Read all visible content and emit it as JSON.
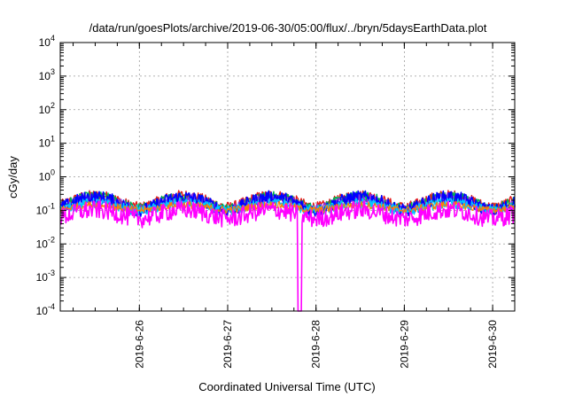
{
  "chart_data": {
    "type": "line",
    "title": "/data/run/goesPlots/archive/2019-06-30/05:00/flux/../bryn/5daysEarthData.plot",
    "xlabel": "Coordinated Universal Time (UTC)",
    "ylabel": "cGy/day",
    "yscale": "log",
    "ylim": [
      0.0001,
      10000
    ],
    "xlim": [
      "2019-06-25T02:30",
      "2019-06-30T06:00"
    ],
    "grid": true,
    "legend": "none",
    "y_ticks": [
      {
        "value": 0.0001,
        "base": "10",
        "exp": "-4"
      },
      {
        "value": 0.001,
        "base": "10",
        "exp": "-3"
      },
      {
        "value": 0.01,
        "base": "10",
        "exp": "-2"
      },
      {
        "value": 0.1,
        "base": "10",
        "exp": "-1"
      },
      {
        "value": 1,
        "base": "10",
        "exp": "0"
      },
      {
        "value": 10,
        "base": "10",
        "exp": "1"
      },
      {
        "value": 100,
        "base": "10",
        "exp": "2"
      },
      {
        "value": 1000,
        "base": "10",
        "exp": "3"
      },
      {
        "value": 10000,
        "base": "10",
        "exp": "4"
      }
    ],
    "x_ticks": [
      {
        "value": "2019-06-26",
        "label": "2019-6-26"
      },
      {
        "value": "2019-06-27",
        "label": "2019-6-27"
      },
      {
        "value": "2019-06-28",
        "label": "2019-6-28"
      },
      {
        "value": "2019-06-29",
        "label": "2019-6-29"
      },
      {
        "value": "2019-06-30",
        "label": "2019-6-30"
      }
    ],
    "series": [
      {
        "color": "#e41a1c",
        "level": 0.3,
        "amplitude": 0.55,
        "noise": 0.28,
        "width": 1.4
      },
      {
        "color": "#00b050",
        "level": 0.27,
        "amplitude": 0.55,
        "noise": 0.3,
        "width": 1.4
      },
      {
        "color": "#8a2be2",
        "level": 0.24,
        "amplitude": 0.55,
        "noise": 0.32,
        "width": 1.4
      },
      {
        "color": "#0000ff",
        "level": 0.26,
        "amplitude": 0.6,
        "noise": 0.38,
        "width": 1.6
      },
      {
        "color": "#00c8ff",
        "level": 0.17,
        "amplitude": 0.4,
        "noise": 0.3,
        "width": 1.4
      },
      {
        "color": "#ff7f00",
        "level": 0.15,
        "amplitude": 0.3,
        "noise": 0.22,
        "width": 1.2
      },
      {
        "color": "#ff00ff",
        "level": 0.11,
        "amplitude": 0.45,
        "noise": 0.55,
        "width": 1.6
      }
    ],
    "dip": {
      "time": "2019-06-27T19:30",
      "value": 0.0001
    }
  }
}
